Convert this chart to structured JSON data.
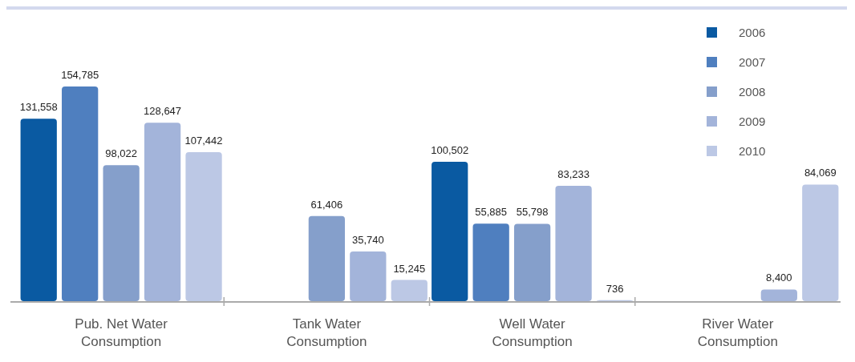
{
  "chart_data": {
    "type": "bar",
    "categories": [
      "Pub. Net Water Consumption",
      "Tank Water Consumption",
      "Well Water Consumption",
      "River Water Consumption"
    ],
    "series": [
      {
        "name": "2006",
        "color": "#0a5aa2",
        "values": [
          131558,
          null,
          100502,
          null
        ],
        "value_labels": [
          "131,558",
          null,
          "100,502",
          null
        ]
      },
      {
        "name": "2007",
        "color": "#4f7fbf",
        "values": [
          154785,
          null,
          55885,
          null
        ],
        "value_labels": [
          "154,785",
          null,
          "55,885",
          null
        ]
      },
      {
        "name": "2008",
        "color": "#859fcb",
        "values": [
          98022,
          61406,
          55798,
          null
        ],
        "value_labels": [
          "98,022",
          "61,406",
          "55,798",
          null
        ]
      },
      {
        "name": "2009",
        "color": "#a3b4da",
        "values": [
          128647,
          35740,
          83233,
          8400
        ],
        "value_labels": [
          "128,647",
          "35,740",
          "83,233",
          "8,400"
        ]
      },
      {
        "name": "2010",
        "color": "#bcc8e5",
        "values": [
          107442,
          15245,
          736,
          84069
        ],
        "value_labels": [
          "107,442",
          "15,245",
          "736",
          "84,069"
        ]
      }
    ],
    "legend": "top right",
    "grid": false
  }
}
